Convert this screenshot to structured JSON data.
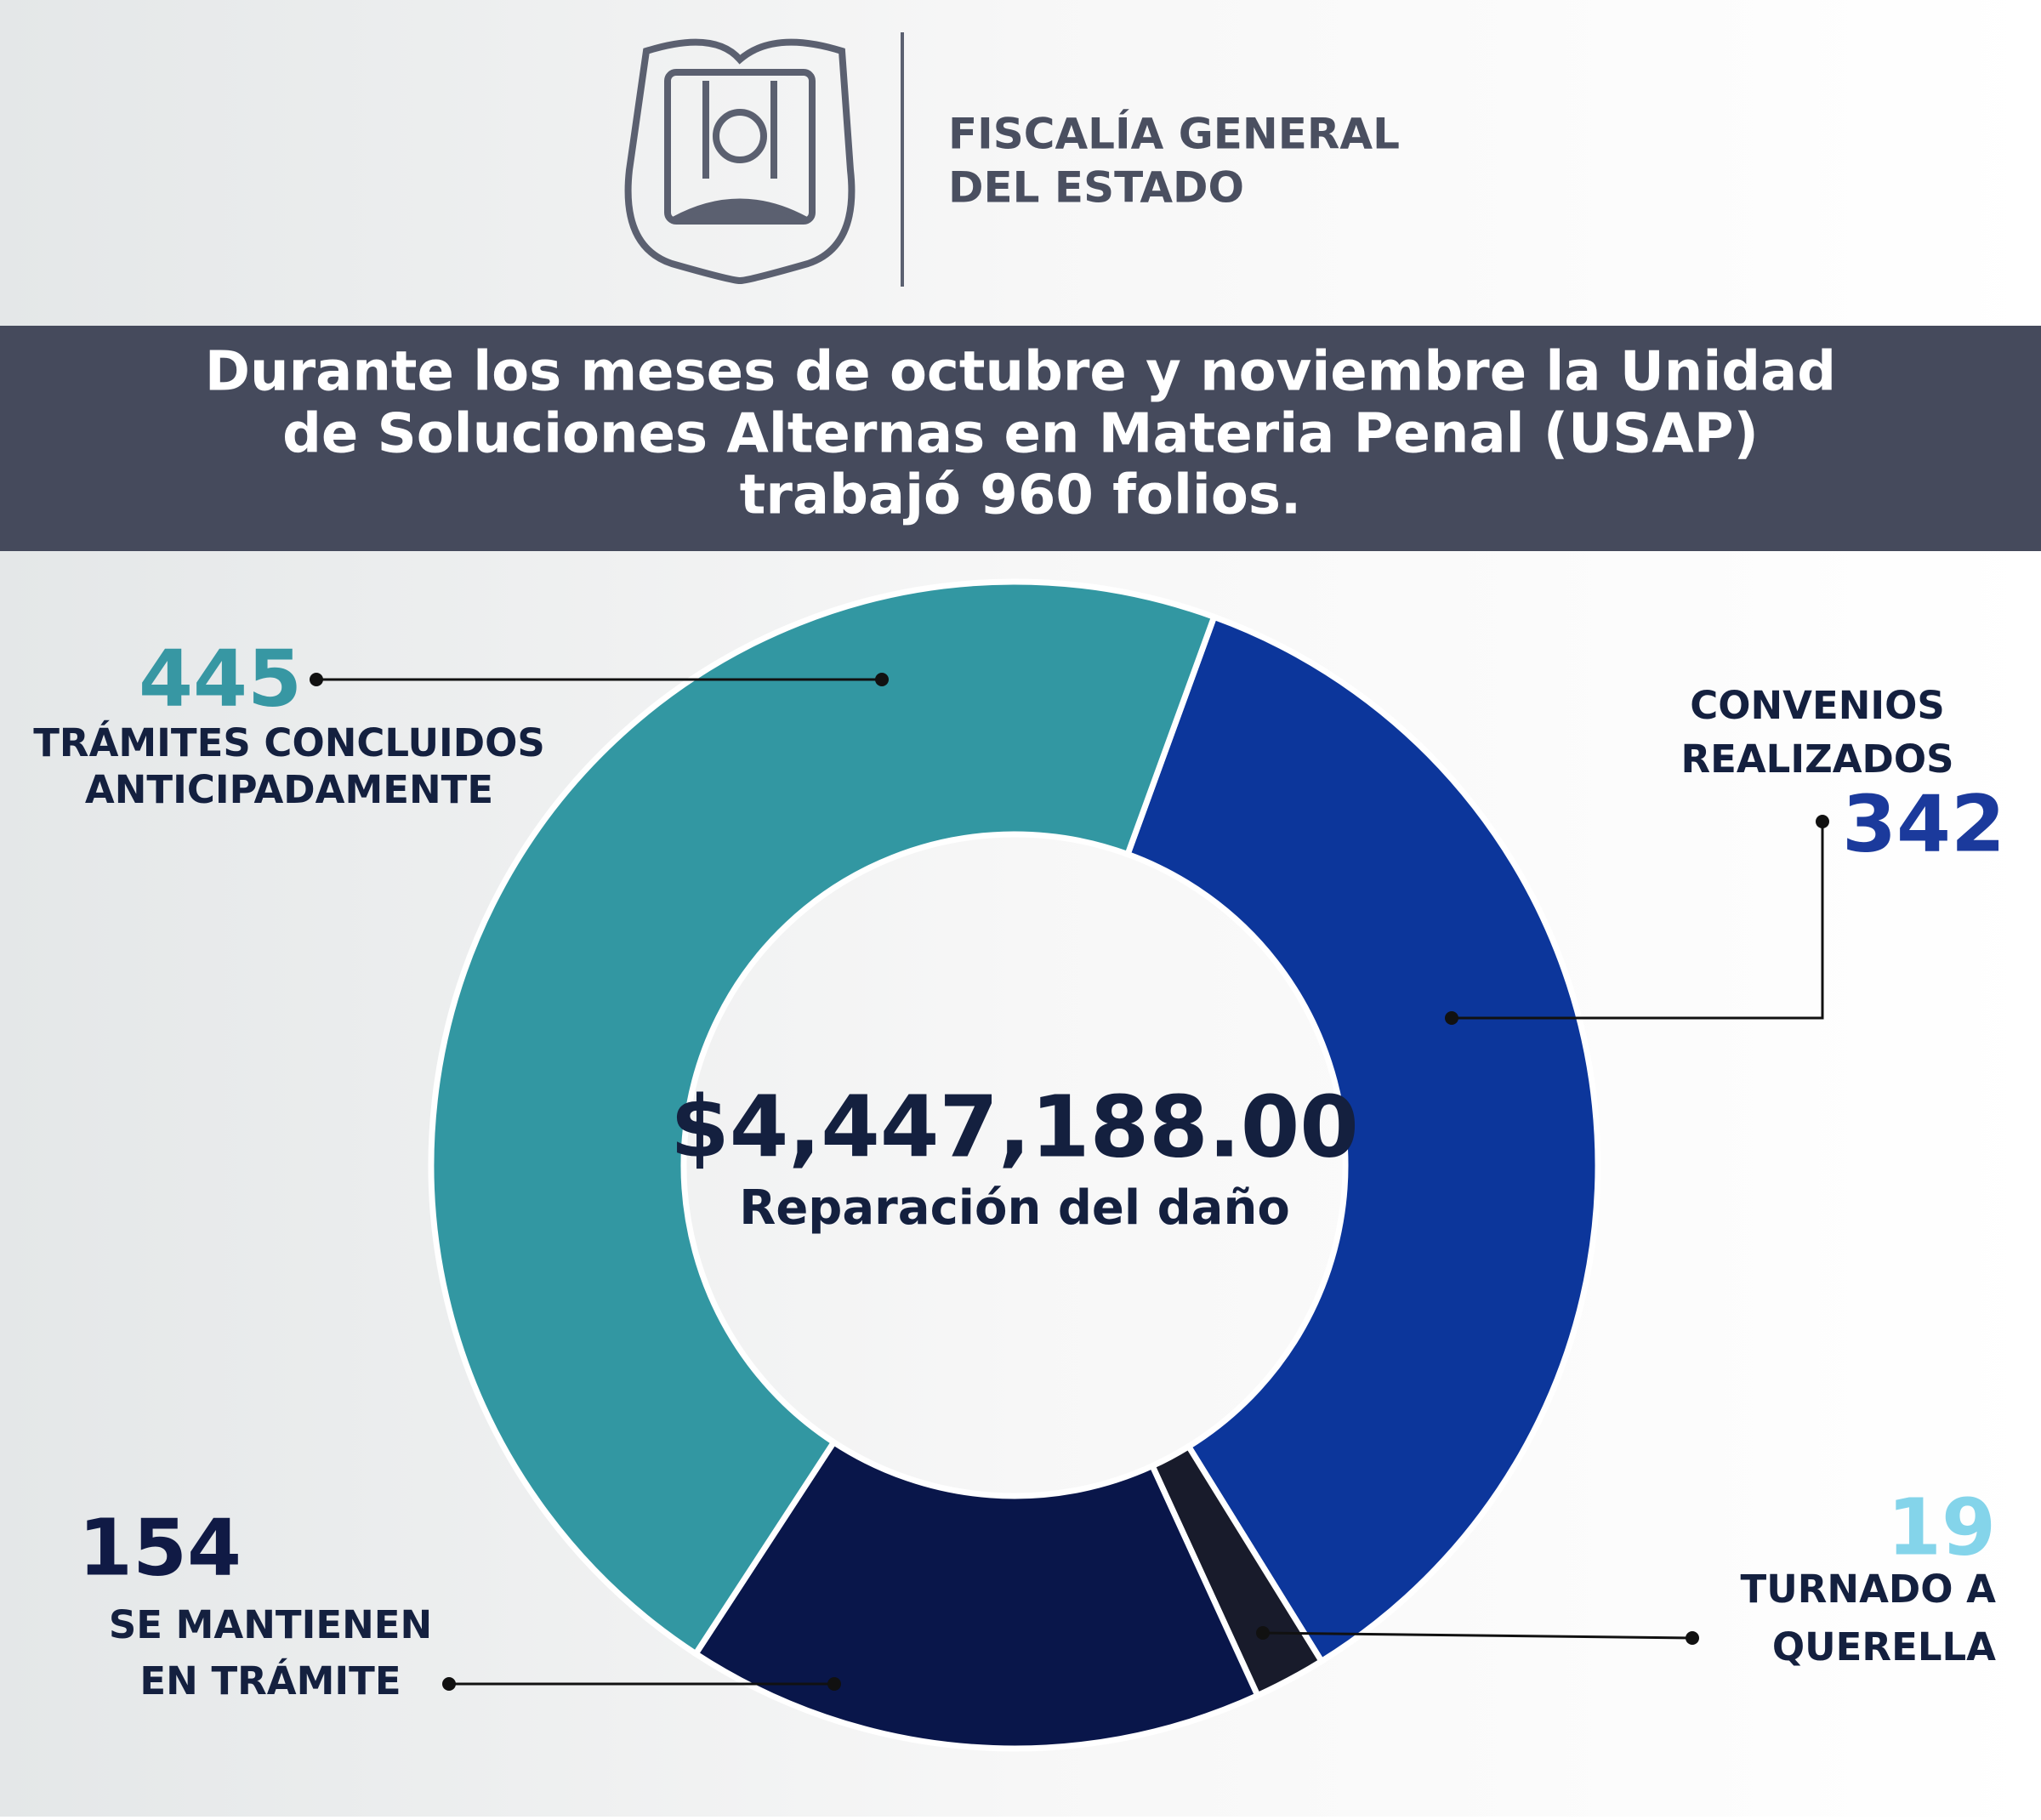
{
  "header": {
    "org_lines": [
      "FISCALÍA GENERAL",
      "DEL ESTADO"
    ]
  },
  "banner": {
    "lines": [
      "Durante los meses de octubre y noviembre la Unidad",
      "de Soluciones Alternas en Materia Penal (USAP)",
      "trabajó 960 folios."
    ]
  },
  "chart_data": {
    "type": "donut",
    "categories": [
      [
        "CONVENIOS",
        "REALIZADOS"
      ],
      [
        "TURNADO A",
        "QUERELLA"
      ],
      [
        "SE MANTIENEN",
        "EN TRÁMITE"
      ],
      [
        "TRÁMITES CONCLUIDOS",
        "ANTICIPADAMENTE"
      ]
    ],
    "values": [
      342,
      19,
      154,
      445
    ],
    "colors": [
      "#0c369b",
      "#181b2b",
      "#09164a",
      "#3297a2"
    ],
    "label_colors": [
      "#1b3a9c",
      "#84d4ea",
      "#101a45",
      "#3797a3"
    ],
    "center_value": "$4,447,188.00",
    "center_label": "Reparación del daño"
  }
}
